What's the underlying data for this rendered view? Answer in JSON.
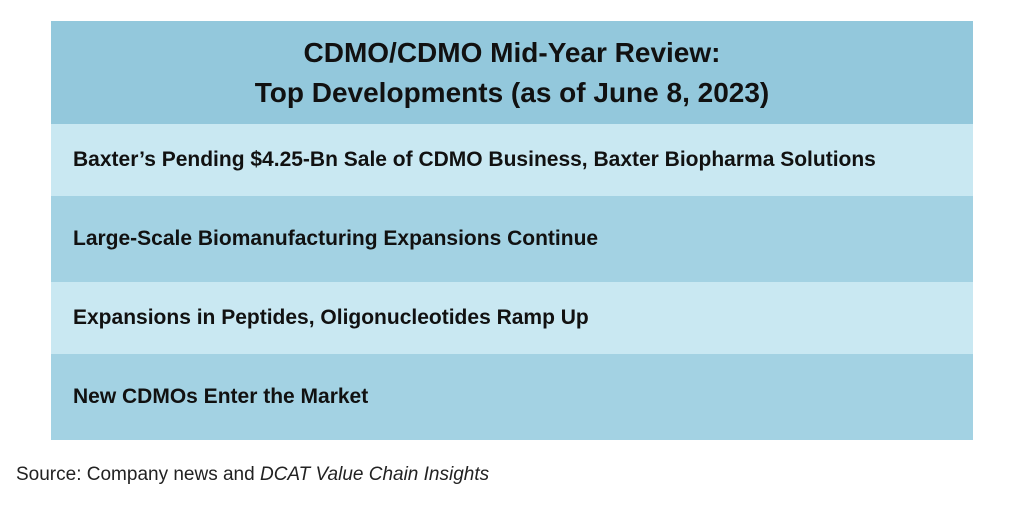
{
  "header": {
    "title_line1": "CDMO/CDMO Mid-Year Review:",
    "title_line2": "Top Developments (as of June 8, 2023)"
  },
  "rows": [
    {
      "text": "Baxter’s Pending $4.25-Bn Sale of CDMO Business, Baxter Biopharma Solutions"
    },
    {
      "text": "Large-Scale Biomanufacturing Expansions Continue"
    },
    {
      "text": "Expansions in Peptides, Oligonucleotides Ramp Up"
    },
    {
      "text": "New CDMOs Enter the Market"
    }
  ],
  "source": {
    "prefix": "Source: Company news and ",
    "italic": "DCAT Value Chain Insights"
  },
  "colors": {
    "header_bg": "#93c8dc",
    "row_light": "#c9e8f2",
    "row_dark": "#a3d2e3",
    "text": "#111111"
  }
}
